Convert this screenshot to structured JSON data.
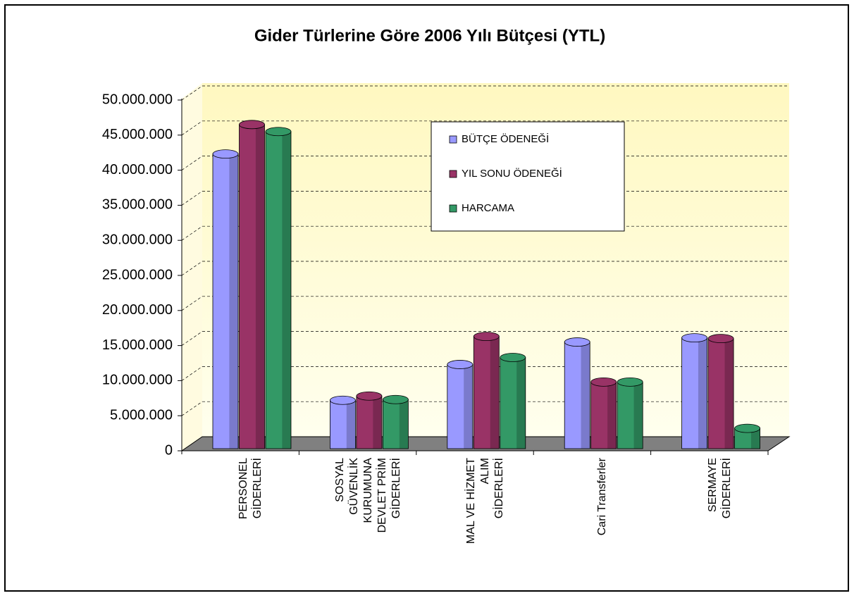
{
  "chart_data": {
    "type": "bar3d",
    "title": "Gider Türlerine Göre 2006 Yılı Bütçesi (YTL)",
    "categories": [
      "PERSONEL GİDERLERİ",
      "SOSYAL GÜVENLİK KURUMUNA DEVLET PRİM GİDERLERİ",
      "MAL VE HİZMET ALIM GİDERLERİ",
      "Cari Transferler",
      "SERMAYE GİDERLERİ"
    ],
    "series": [
      {
        "name": "BÜTÇE ÖDENEĞİ",
        "color": "#9999ff",
        "values": [
          41300000,
          6200000,
          11300000,
          14500000,
          15100000
        ]
      },
      {
        "name": "YIL SONU ÖDENEĞİ",
        "color": "#993366",
        "values": [
          45500000,
          6800000,
          15300000,
          8800000,
          15000000
        ]
      },
      {
        "name": "HARCAMA",
        "color": "#339966",
        "values": [
          44500000,
          6300000,
          12300000,
          8800000,
          2200000
        ]
      }
    ],
    "ylim": [
      0,
      50000000
    ],
    "yticks": [
      0,
      {
        "value": 5000000,
        "label": "5.000.000"
      },
      {
        "value": 10000000,
        "label": "10.000.000"
      },
      {
        "value": 15000000,
        "label": "15.000.000"
      },
      {
        "value": 20000000,
        "label": "20.000.000"
      },
      {
        "value": 25000000,
        "label": "25.000.000"
      },
      {
        "value": 30000000,
        "label": "30.000.000"
      },
      {
        "value": 35000000,
        "label": "35.000.000"
      },
      {
        "value": 40000000,
        "label": "40.000.000"
      },
      {
        "value": 45000000,
        "label": "45.000.000"
      },
      {
        "value": 50000000,
        "label": "50.000.000"
      }
    ],
    "grid": true,
    "legend": "upper right"
  }
}
